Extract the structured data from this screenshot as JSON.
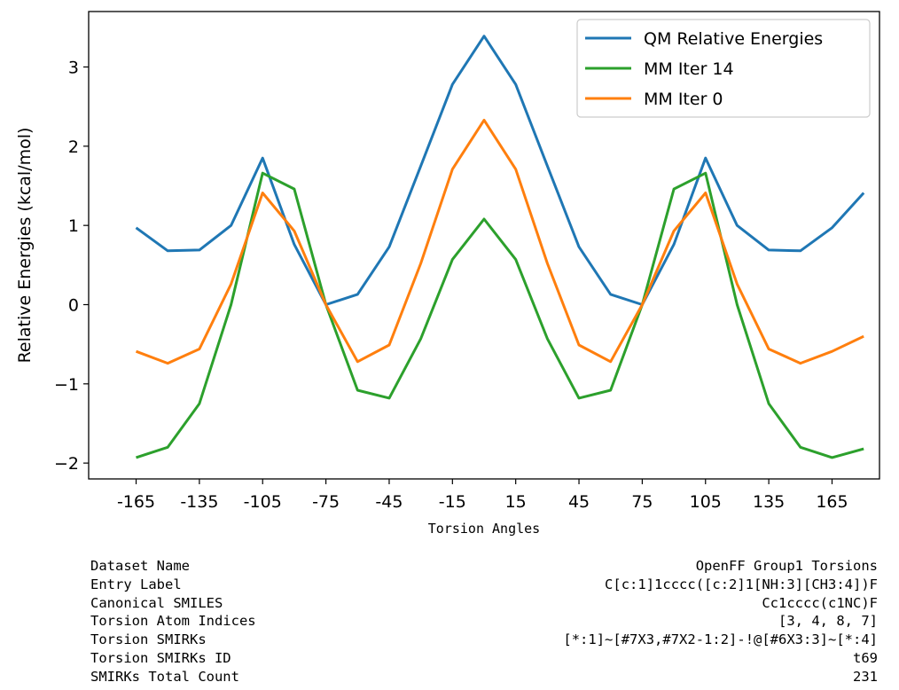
{
  "chart_data": {
    "type": "line",
    "title": "",
    "xlabel": "Torsion Angles",
    "ylabel": "Relative Energies (kcal/mol)",
    "xlim": [
      -187.5,
      187.5
    ],
    "ylim": [
      -2.2,
      3.7
    ],
    "xticks": [
      -165,
      -135,
      -105,
      -75,
      -45,
      -15,
      15,
      45,
      75,
      105,
      135,
      165
    ],
    "yticks": [
      -2,
      -1,
      0,
      1,
      2,
      3
    ],
    "x": [
      -165,
      -150,
      -135,
      -120,
      -105,
      -90,
      -75,
      -60,
      -45,
      -30,
      -15,
      0,
      15,
      30,
      45,
      60,
      75,
      90,
      105,
      120,
      135,
      150,
      165,
      180
    ],
    "legend_position": "top-right",
    "grid": false,
    "series": [
      {
        "name": "QM Relative Energies",
        "color": "#1f77b4",
        "values": [
          0.97,
          0.68,
          0.69,
          1.0,
          1.85,
          0.76,
          0.0,
          0.13,
          0.73,
          1.75,
          2.78,
          3.39,
          2.78,
          1.75,
          0.73,
          0.13,
          0.0,
          0.76,
          1.85,
          1.0,
          0.69,
          0.68,
          0.97,
          1.41
        ]
      },
      {
        "name": "MM Iter 14",
        "color": "#2ca02c",
        "values": [
          -1.93,
          -1.8,
          -1.25,
          0.0,
          1.66,
          1.46,
          0.0,
          -1.08,
          -1.18,
          -0.43,
          0.57,
          1.08,
          0.57,
          -0.43,
          -1.18,
          -1.08,
          0.0,
          1.46,
          1.66,
          0.0,
          -1.25,
          -1.8,
          -1.93,
          -1.82
        ]
      },
      {
        "name": "MM Iter 0",
        "color": "#ff7f0e",
        "values": [
          -0.59,
          -0.74,
          -0.56,
          0.26,
          1.41,
          0.93,
          0.0,
          -0.72,
          -0.51,
          0.52,
          1.71,
          2.33,
          1.71,
          0.52,
          -0.51,
          -0.72,
          0.0,
          0.93,
          1.41,
          0.26,
          -0.56,
          -0.74,
          -0.59,
          -0.4
        ]
      }
    ]
  },
  "info_table": [
    {
      "label": "Dataset Name",
      "value": "OpenFF Group1 Torsions"
    },
    {
      "label": "Entry Label",
      "value": "C[c:1]1cccc([c:2]1[NH:3][CH3:4])F"
    },
    {
      "label": "Canonical SMILES",
      "value": "Cc1cccc(c1NC)F"
    },
    {
      "label": "Torsion Atom Indices",
      "value": "[3, 4, 8, 7]"
    },
    {
      "label": "Torsion SMIRKs",
      "value": "[*:1]~[#7X3,#7X2-1:2]-!@[#6X3:3]~[*:4]"
    },
    {
      "label": "Torsion SMIRKs ID",
      "value": "t69"
    },
    {
      "label": "SMIRKs Total Count",
      "value": "231"
    }
  ]
}
